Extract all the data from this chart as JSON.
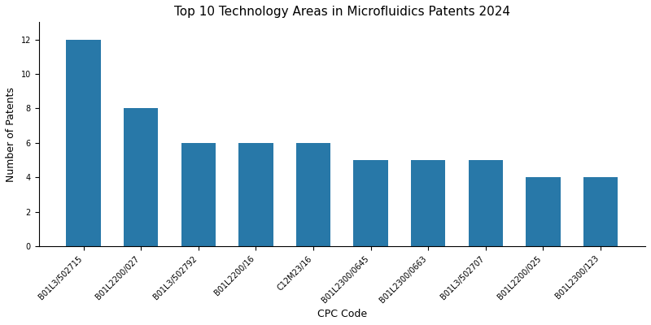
{
  "title": "Top 10 Technology Areas in Microfluidics Patents 2024",
  "xlabel": "CPC Code",
  "ylabel": "Number of Patents",
  "categories": [
    "B01L3/502715",
    "B01L2200/027",
    "B01L3/502792",
    "B01L2200/16",
    "C12M23/16",
    "B01L2300/0645",
    "B01L2300/0663",
    "B01L3/502707",
    "B01L2200/025",
    "B01L2300/123"
  ],
  "values": [
    12,
    8,
    6,
    6,
    6,
    5,
    5,
    5,
    4,
    4
  ],
  "bar_color": "#2878a8",
  "ylim": [
    0,
    13
  ],
  "yticks": [
    0,
    2,
    4,
    6,
    8,
    10,
    12
  ],
  "figsize": [
    8.0,
    4.0
  ],
  "dpi": 100,
  "title_fontsize": 11,
  "tick_fontsize": 7,
  "axis_label_fontsize": 9,
  "bar_width": 0.6
}
